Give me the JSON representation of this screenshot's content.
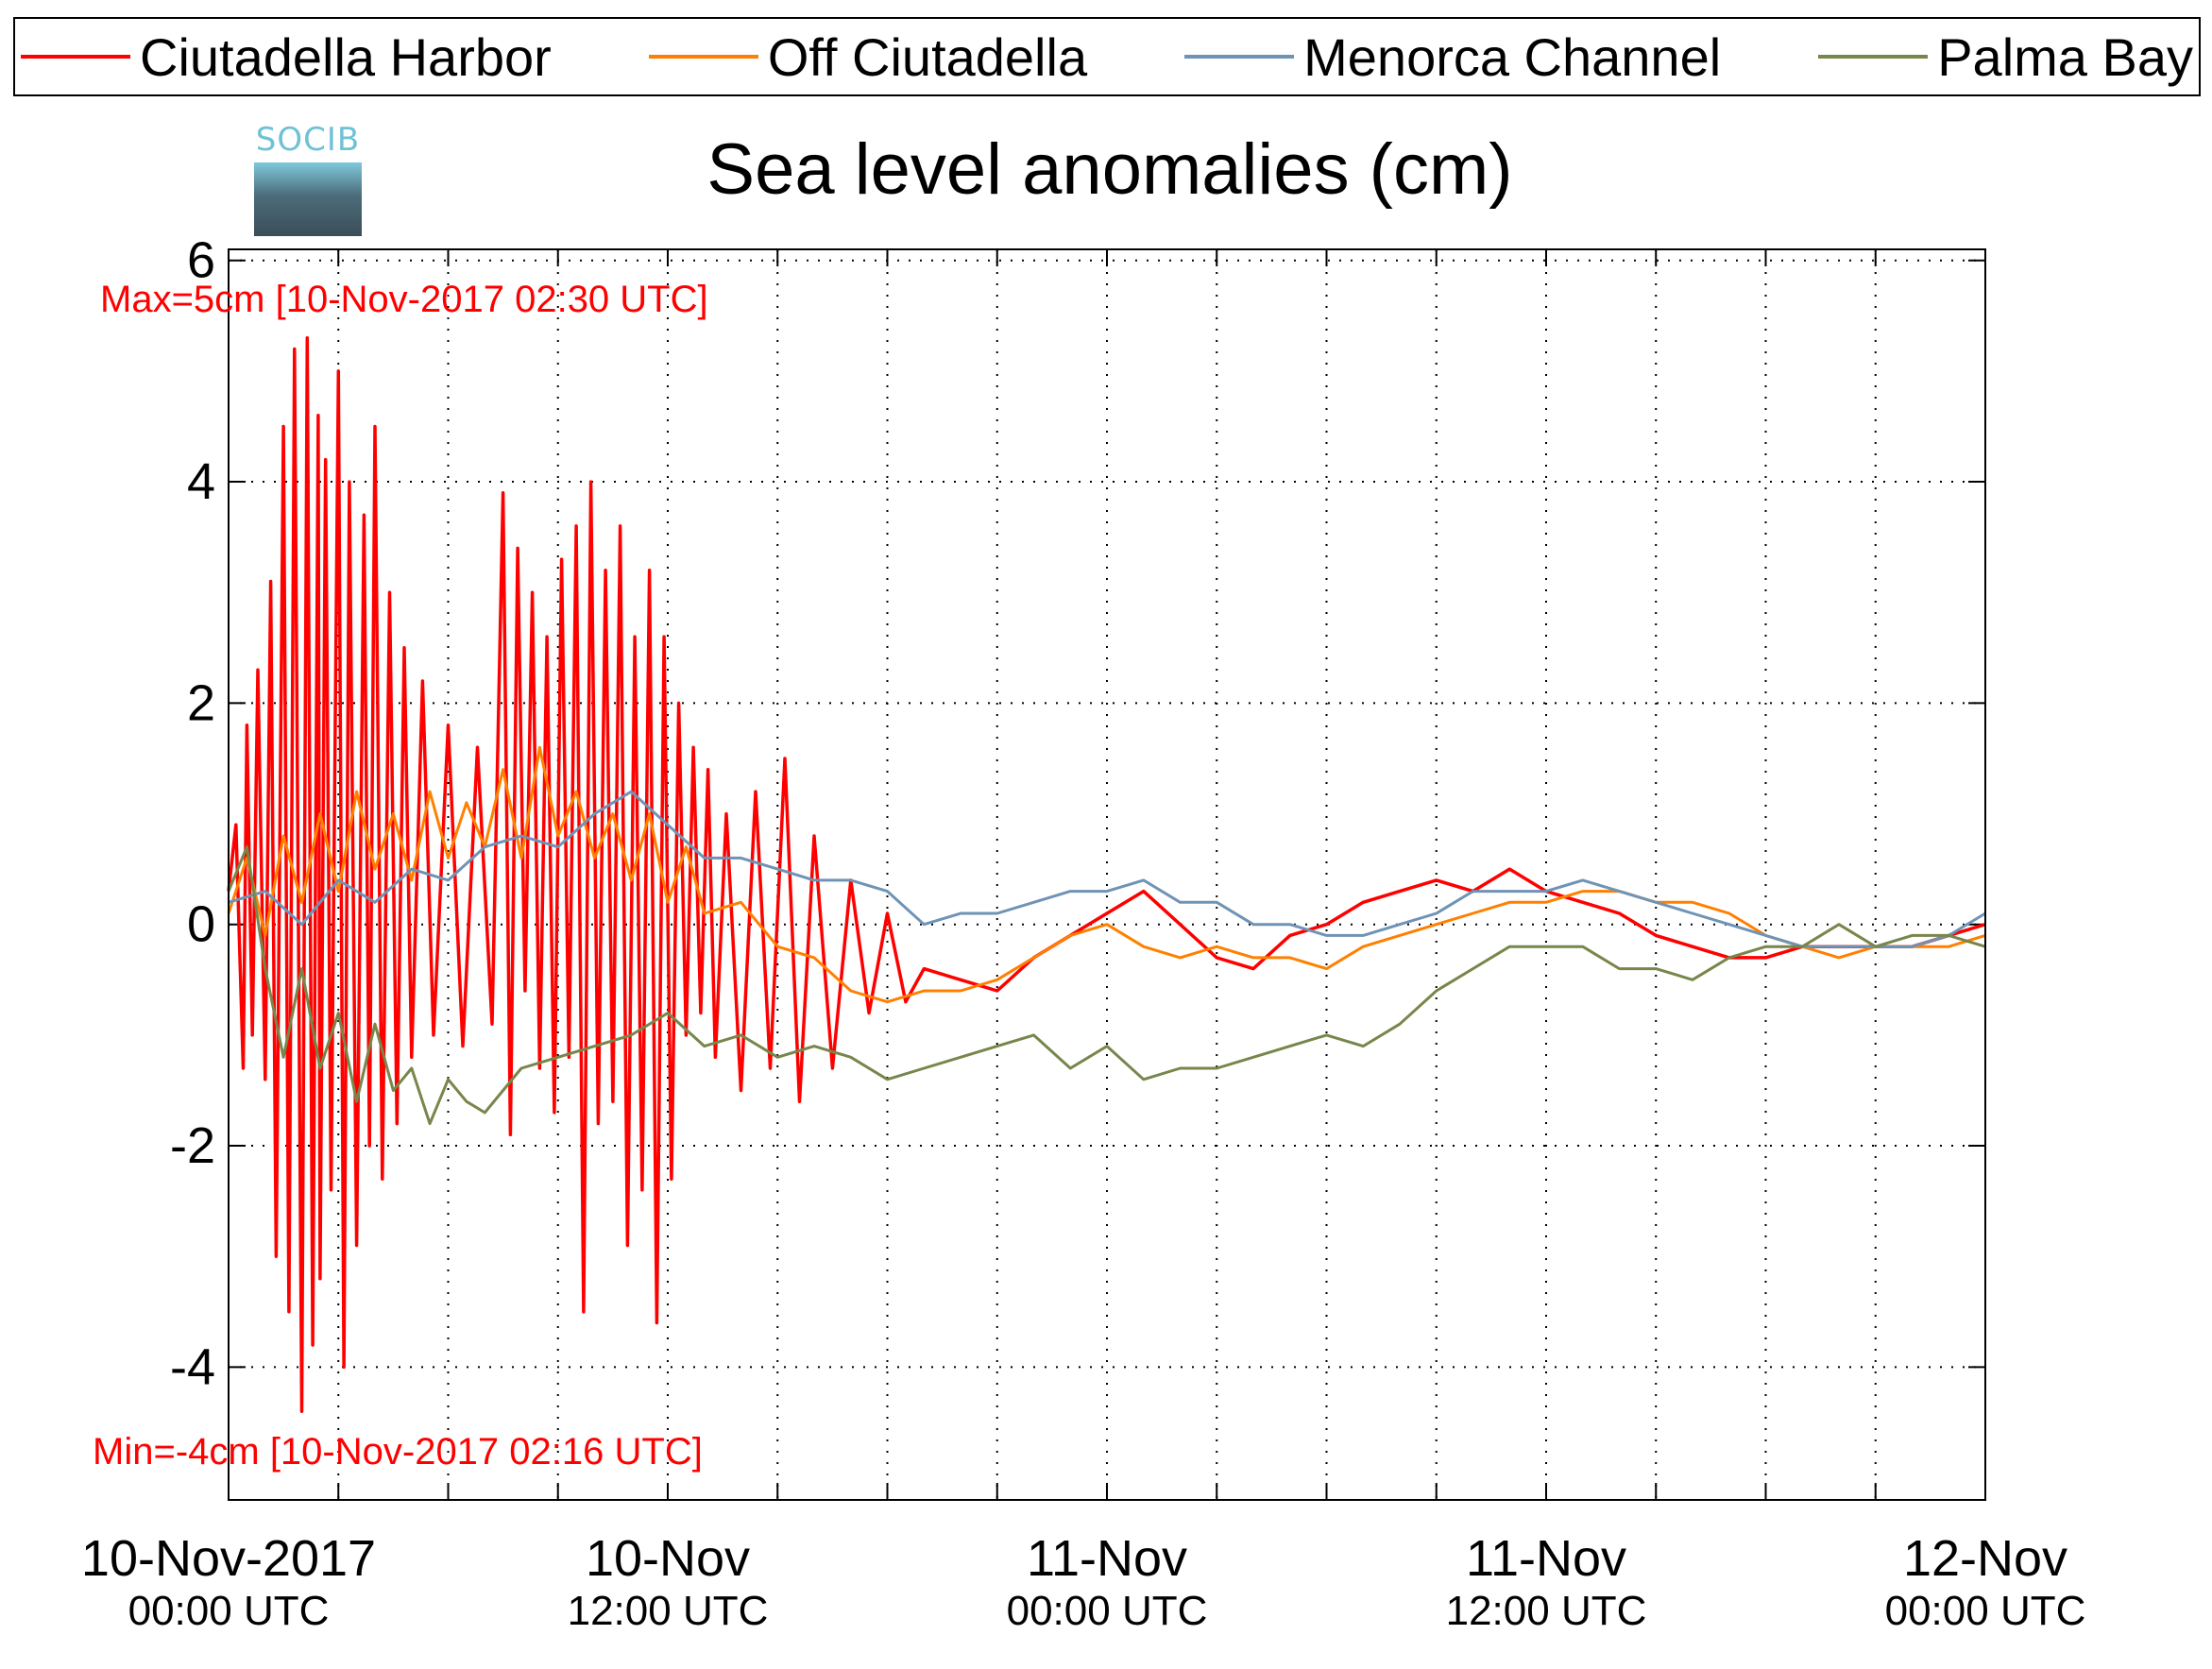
{
  "legend": [
    {
      "label": "Ciutadella Harbor",
      "color": "#ff0000"
    },
    {
      "label": "Off Ciutadella",
      "color": "#ff8000"
    },
    {
      "label": "Menorca Channel",
      "color": "#6f93b5"
    },
    {
      "label": "Palma Bay",
      "color": "#77864a"
    }
  ],
  "logo": {
    "text": "SOCIB"
  },
  "annotations": {
    "max": "Max=5cm [10-Nov-2017 02:30 UTC]",
    "min": "Min=-4cm [10-Nov-2017 02:16 UTC]"
  },
  "chart_data": {
    "type": "line",
    "title": "Sea level anomalies (cm)",
    "xlabel": "",
    "ylabel": "",
    "x_unit": "hours since 10-Nov-2017 00:00 UTC",
    "xlim": [
      0,
      48
    ],
    "ylim": [
      -5.2,
      6.1
    ],
    "y_ticks": [
      -4,
      -2,
      0,
      2,
      4,
      6
    ],
    "x_ticks": [
      {
        "x": 0,
        "label": "10-Nov-2017",
        "sublabel": "00:00 UTC"
      },
      {
        "x": 12,
        "label": "10-Nov",
        "sublabel": "12:00 UTC"
      },
      {
        "x": 24,
        "label": "11-Nov",
        "sublabel": "00:00 UTC"
      },
      {
        "x": 36,
        "label": "11-Nov",
        "sublabel": "12:00 UTC"
      },
      {
        "x": 48,
        "label": "12-Nov",
        "sublabel": "00:00 UTC"
      }
    ],
    "minor_x_every_hours": 3,
    "grid": true,
    "legend_position": "top",
    "series": [
      {
        "name": "Ciutadella Harbor",
        "color": "#ff0000",
        "x": [
          0,
          0.2,
          0.4,
          0.5,
          0.65,
          0.8,
          1.0,
          1.15,
          1.3,
          1.5,
          1.65,
          1.8,
          2.0,
          2.15,
          2.3,
          2.45,
          2.5,
          2.65,
          2.8,
          3.0,
          3.15,
          3.3,
          3.5,
          3.7,
          3.85,
          4.0,
          4.2,
          4.4,
          4.6,
          4.8,
          5.0,
          5.3,
          5.6,
          6.0,
          6.4,
          6.8,
          7.2,
          7.5,
          7.7,
          7.9,
          8.1,
          8.3,
          8.5,
          8.7,
          8.9,
          9.1,
          9.3,
          9.5,
          9.7,
          9.9,
          10.1,
          10.3,
          10.5,
          10.7,
          10.9,
          11.1,
          11.3,
          11.5,
          11.7,
          11.9,
          12.1,
          12.3,
          12.5,
          12.7,
          12.9,
          13.1,
          13.3,
          13.6,
          14.0,
          14.4,
          14.8,
          15.2,
          15.6,
          16.0,
          16.5,
          17.0,
          17.5,
          18.0,
          18.5,
          19.0,
          20.0,
          21.0,
          22.0,
          23.0,
          24.0,
          25.0,
          26.0,
          27.0,
          28.0,
          29.0,
          30.0,
          31.0,
          32.0,
          33.0,
          34.0,
          35.0,
          36.0,
          37.0,
          38.0,
          39.0,
          40.0,
          41.0,
          42.0,
          43.0,
          44.0,
          45.0,
          46.0,
          47.0,
          48.0
        ],
        "y": [
          0.3,
          0.9,
          -1.3,
          1.8,
          -1.0,
          2.3,
          -1.4,
          3.1,
          -3.0,
          4.5,
          -3.5,
          5.2,
          -4.4,
          5.3,
          -3.8,
          4.6,
          -3.2,
          4.2,
          -2.4,
          5.0,
          -4.0,
          4.0,
          -2.9,
          3.7,
          -2.0,
          4.5,
          -2.3,
          3.0,
          -1.8,
          2.5,
          -1.2,
          2.2,
          -1.0,
          1.8,
          -1.1,
          1.6,
          -0.9,
          3.9,
          -1.9,
          3.4,
          -0.6,
          3.0,
          -1.3,
          2.6,
          -1.7,
          3.3,
          -1.2,
          3.6,
          -3.5,
          4.0,
          -1.8,
          3.2,
          -1.6,
          3.6,
          -2.9,
          2.6,
          -2.4,
          3.2,
          -3.6,
          2.6,
          -2.3,
          2.0,
          -1.0,
          1.6,
          -0.8,
          1.4,
          -1.2,
          1.0,
          -1.5,
          1.2,
          -1.3,
          1.5,
          -1.6,
          0.8,
          -1.3,
          0.4,
          -0.8,
          0.1,
          -0.7,
          -0.4,
          -0.5,
          -0.6,
          -0.3,
          -0.1,
          0.1,
          0.3,
          0.0,
          -0.3,
          -0.4,
          -0.1,
          0.0,
          0.2,
          0.3,
          0.4,
          0.3,
          0.5,
          0.3,
          0.2,
          0.1,
          -0.1,
          -0.2,
          -0.3,
          -0.3,
          -0.2,
          -0.2,
          -0.2,
          -0.2,
          -0.1,
          0.0
        ]
      },
      {
        "name": "Off Ciutadella",
        "color": "#ff8000",
        "x": [
          0,
          0.5,
          1.0,
          1.5,
          2.0,
          2.5,
          3.0,
          3.5,
          4.0,
          4.5,
          5.0,
          5.5,
          6.0,
          6.5,
          7.0,
          7.5,
          8.0,
          8.5,
          9.0,
          9.5,
          10.0,
          10.5,
          11.0,
          11.5,
          12.0,
          12.5,
          13.0,
          14.0,
          15.0,
          16.0,
          17.0,
          18.0,
          19.0,
          20.0,
          21.0,
          22.0,
          23.0,
          24.0,
          25.0,
          26.0,
          27.0,
          28.0,
          29.0,
          30.0,
          31.0,
          32.0,
          33.0,
          34.0,
          35.0,
          36.0,
          37.0,
          38.0,
          39.0,
          40.0,
          41.0,
          42.0,
          43.0,
          44.0,
          45.0,
          46.0,
          47.0,
          48.0
        ],
        "y": [
          0.1,
          0.6,
          -0.1,
          0.8,
          0.2,
          1.0,
          0.3,
          1.2,
          0.5,
          1.0,
          0.4,
          1.2,
          0.6,
          1.1,
          0.7,
          1.4,
          0.6,
          1.6,
          0.8,
          1.2,
          0.6,
          1.0,
          0.4,
          1.0,
          0.2,
          0.7,
          0.1,
          0.2,
          -0.2,
          -0.3,
          -0.6,
          -0.7,
          -0.6,
          -0.6,
          -0.5,
          -0.3,
          -0.1,
          0.0,
          -0.2,
          -0.3,
          -0.2,
          -0.3,
          -0.3,
          -0.4,
          -0.2,
          -0.1,
          0.0,
          0.1,
          0.2,
          0.2,
          0.3,
          0.3,
          0.2,
          0.2,
          0.1,
          -0.1,
          -0.2,
          -0.3,
          -0.2,
          -0.2,
          -0.2,
          -0.1
        ]
      },
      {
        "name": "Menorca Channel",
        "color": "#6f93b5",
        "x": [
          0,
          1,
          2,
          3,
          4,
          5,
          6,
          7,
          8,
          9,
          10,
          11,
          12,
          13,
          14,
          15,
          16,
          17,
          18,
          19,
          20,
          21,
          22,
          23,
          24,
          25,
          26,
          27,
          28,
          29,
          30,
          31,
          32,
          33,
          34,
          35,
          36,
          37,
          38,
          39,
          40,
          41,
          42,
          43,
          44,
          45,
          46,
          47,
          48
        ],
        "y": [
          0.2,
          0.3,
          0.0,
          0.4,
          0.2,
          0.5,
          0.4,
          0.7,
          0.8,
          0.7,
          1.0,
          1.2,
          0.9,
          0.6,
          0.6,
          0.5,
          0.4,
          0.4,
          0.3,
          0.0,
          0.1,
          0.1,
          0.2,
          0.3,
          0.3,
          0.4,
          0.2,
          0.2,
          0.0,
          0.0,
          -0.1,
          -0.1,
          0.0,
          0.1,
          0.3,
          0.3,
          0.3,
          0.4,
          0.3,
          0.2,
          0.1,
          0.0,
          -0.1,
          -0.2,
          -0.2,
          -0.2,
          -0.2,
          -0.1,
          0.1
        ]
      },
      {
        "name": "Palma Bay",
        "color": "#77864a",
        "x": [
          0,
          0.5,
          1.0,
          1.5,
          2.0,
          2.5,
          3.0,
          3.5,
          4.0,
          4.5,
          5.0,
          5.5,
          6.0,
          6.5,
          7.0,
          7.5,
          8.0,
          9.0,
          10.0,
          11.0,
          12.0,
          13.0,
          14.0,
          15.0,
          16.0,
          17.0,
          18.0,
          19.0,
          20.0,
          21.0,
          22.0,
          23.0,
          24.0,
          25.0,
          26.0,
          27.0,
          28.0,
          29.0,
          30.0,
          31.0,
          32.0,
          33.0,
          34.0,
          35.0,
          36.0,
          37.0,
          38.0,
          39.0,
          40.0,
          41.0,
          42.0,
          43.0,
          44.0,
          45.0,
          46.0,
          47.0,
          48.0
        ],
        "y": [
          0.3,
          0.7,
          -0.4,
          -1.2,
          -0.4,
          -1.3,
          -0.8,
          -1.6,
          -0.9,
          -1.5,
          -1.3,
          -1.8,
          -1.4,
          -1.6,
          -1.7,
          -1.5,
          -1.3,
          -1.2,
          -1.1,
          -1.0,
          -0.8,
          -1.1,
          -1.0,
          -1.2,
          -1.1,
          -1.2,
          -1.4,
          -1.3,
          -1.2,
          -1.1,
          -1.0,
          -1.3,
          -1.1,
          -1.4,
          -1.3,
          -1.3,
          -1.2,
          -1.1,
          -1.0,
          -1.1,
          -0.9,
          -0.6,
          -0.4,
          -0.2,
          -0.2,
          -0.2,
          -0.4,
          -0.4,
          -0.5,
          -0.3,
          -0.2,
          -0.2,
          0.0,
          -0.2,
          -0.1,
          -0.1,
          -0.2
        ]
      }
    ]
  }
}
